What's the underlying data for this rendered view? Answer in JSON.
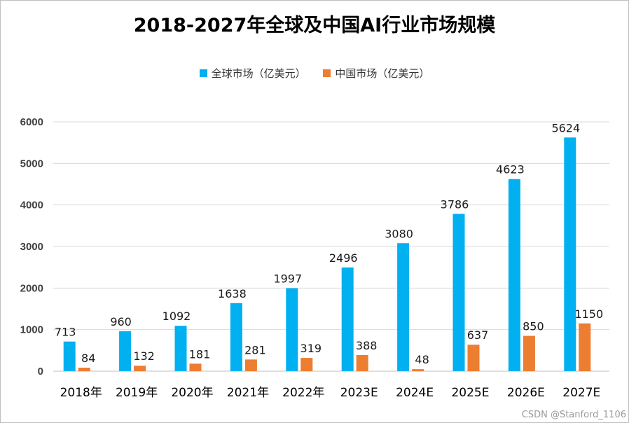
{
  "chart_data": {
    "type": "bar",
    "title": "2018-2027年全球及中国AI行业市场规模",
    "categories": [
      "2018年",
      "2019年",
      "2020年",
      "2021年",
      "2022年",
      "2023E",
      "2024E",
      "2025E",
      "2026E",
      "2027E"
    ],
    "series": [
      {
        "name": "全球市场（亿美元）",
        "color": "#00b0f0",
        "values": [
          713,
          960,
          1092,
          1638,
          1997,
          2496,
          3080,
          3786,
          4623,
          5624
        ]
      },
      {
        "name": "中国市场（亿美元）",
        "color": "#ed7d31",
        "values": [
          84,
          132,
          181,
          281,
          319,
          388,
          48,
          637,
          850,
          1150
        ]
      }
    ],
    "ylim": [
      0,
      6000
    ],
    "yticks": [
      0,
      1000,
      2000,
      3000,
      4000,
      5000,
      6000
    ],
    "grid": true,
    "legend_position": "top",
    "xlabel": "",
    "ylabel": ""
  },
  "watermark": "CSDN @Stanford_1106"
}
